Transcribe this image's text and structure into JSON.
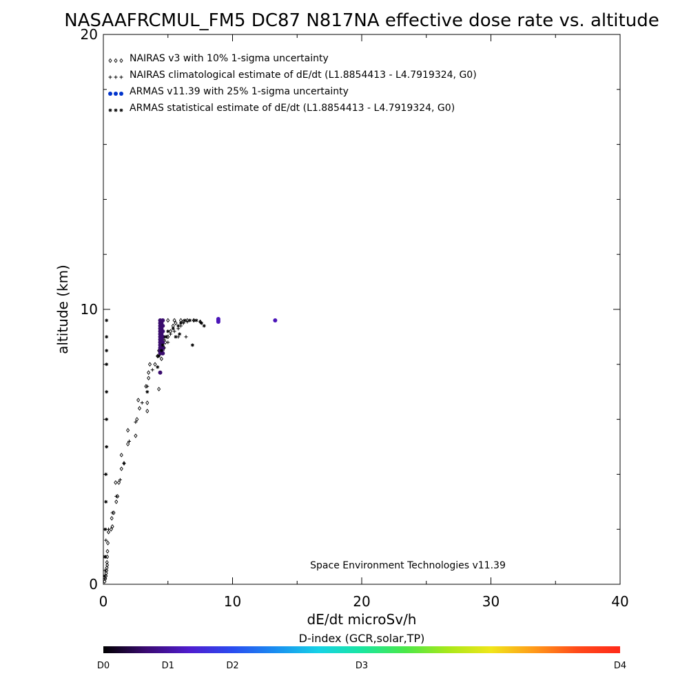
{
  "chart_data": {
    "type": "scatter",
    "title": "NASAAFRCMUL_FM5 DC87 N817NA effective dose rate vs. altitude",
    "xlabel": "dE/dt microSv/h",
    "ylabel": "altitude (km)",
    "xlim": [
      0,
      40
    ],
    "ylim": [
      0,
      20
    ],
    "x_ticks": [
      "0",
      "10",
      "20",
      "30",
      "40"
    ],
    "y_ticks": [
      "0",
      "10",
      "20"
    ],
    "grid": false,
    "legend_position": "top-left",
    "annotation": "Space Environment Technologies v11.39",
    "series": [
      {
        "name": "NAIRAS v3 with 10% 1-sigma uncertainty",
        "marker": "diamond",
        "color": "#000000",
        "points": [
          [
            0.1,
            0.1
          ],
          [
            0.15,
            0.2
          ],
          [
            0.2,
            0.3
          ],
          [
            0.22,
            0.4
          ],
          [
            0.25,
            0.5
          ],
          [
            0.27,
            0.6
          ],
          [
            0.3,
            0.7
          ],
          [
            0.28,
            0.8
          ],
          [
            0.3,
            1.0
          ],
          [
            0.32,
            1.2
          ],
          [
            0.35,
            1.5
          ],
          [
            0.4,
            1.9
          ],
          [
            0.6,
            2.0
          ],
          [
            0.7,
            2.1
          ],
          [
            0.65,
            2.4
          ],
          [
            0.8,
            2.6
          ],
          [
            1.0,
            3.0
          ],
          [
            1.1,
            3.2
          ],
          [
            0.95,
            3.7
          ],
          [
            1.2,
            3.7
          ],
          [
            1.4,
            4.2
          ],
          [
            1.6,
            4.4
          ],
          [
            1.4,
            4.7
          ],
          [
            1.9,
            5.1
          ],
          [
            1.9,
            5.6
          ],
          [
            2.5,
            5.4
          ],
          [
            2.6,
            6.0
          ],
          [
            2.8,
            6.4
          ],
          [
            3.4,
            6.3
          ],
          [
            3.4,
            6.6
          ],
          [
            2.7,
            6.7
          ],
          [
            3.5,
            7.7
          ],
          [
            3.6,
            8.0
          ],
          [
            3.5,
            7.5
          ],
          [
            3.3,
            7.2
          ],
          [
            4.2,
            8.3
          ],
          [
            4.0,
            8.0
          ],
          [
            4.5,
            8.2
          ],
          [
            4.3,
            8.5
          ],
          [
            4.7,
            8.6
          ],
          [
            4.8,
            8.8
          ],
          [
            5.0,
            9.0
          ],
          [
            5.2,
            9.2
          ],
          [
            5.4,
            9.4
          ],
          [
            5.6,
            9.5
          ],
          [
            5.0,
            9.6
          ],
          [
            5.5,
            9.6
          ],
          [
            6.0,
            9.6
          ],
          [
            6.5,
            9.6
          ],
          [
            7.0,
            9.6
          ],
          [
            7.5,
            9.55
          ],
          [
            6.2,
            9.55
          ],
          [
            4.3,
            7.1
          ]
        ]
      },
      {
        "name": "NAIRAS climatological estimate of dE/dt (L1.8854413 - L4.7919324, G0)",
        "marker": "plus",
        "color": "#000000",
        "points": [
          [
            0.1,
            0.2
          ],
          [
            0.12,
            0.5
          ],
          [
            0.15,
            1.0
          ],
          [
            0.2,
            1.6
          ],
          [
            0.4,
            2.0
          ],
          [
            0.7,
            2.6
          ],
          [
            1.0,
            3.2
          ],
          [
            1.3,
            3.8
          ],
          [
            1.6,
            4.4
          ],
          [
            2.0,
            5.2
          ],
          [
            2.5,
            5.9
          ],
          [
            3.0,
            6.6
          ],
          [
            3.4,
            7.2
          ],
          [
            3.8,
            7.8
          ],
          [
            4.2,
            8.3
          ],
          [
            4.5,
            8.6
          ],
          [
            4.7,
            8.9
          ],
          [
            4.9,
            9.0
          ],
          [
            5.2,
            9.1
          ],
          [
            5.5,
            9.2
          ],
          [
            5.8,
            9.3
          ],
          [
            6.0,
            9.4
          ],
          [
            6.2,
            9.5
          ],
          [
            6.5,
            9.55
          ],
          [
            7.0,
            9.6
          ],
          [
            7.5,
            9.55
          ],
          [
            6.4,
            9.0
          ],
          [
            5.8,
            9.0
          ],
          [
            5.0,
            8.8
          ],
          [
            4.6,
            8.5
          ]
        ]
      },
      {
        "name": "ARMAS v11.39 with 25% 1-sigma uncertainty",
        "marker": "dot",
        "color": "#0033cc",
        "points": [
          [
            4.4,
            9.6
          ],
          [
            4.4,
            9.5
          ],
          [
            4.4,
            9.4
          ],
          [
            4.4,
            9.3
          ],
          [
            4.4,
            9.2
          ],
          [
            4.4,
            9.1
          ],
          [
            4.4,
            9.0
          ],
          [
            4.4,
            8.9
          ],
          [
            4.4,
            8.8
          ],
          [
            4.4,
            8.7
          ],
          [
            4.4,
            8.6
          ],
          [
            4.4,
            8.5
          ],
          [
            4.4,
            8.4
          ],
          [
            4.4,
            7.7
          ],
          [
            4.6,
            9.6
          ],
          [
            4.6,
            9.4
          ],
          [
            4.6,
            9.2
          ],
          [
            4.6,
            9.0
          ],
          [
            4.6,
            8.8
          ],
          [
            4.6,
            8.6
          ],
          [
            4.6,
            8.4
          ],
          [
            4.5,
            9.5
          ],
          [
            4.5,
            9.3
          ],
          [
            4.5,
            9.1
          ],
          [
            4.5,
            8.9
          ],
          [
            4.5,
            8.7
          ],
          [
            4.5,
            8.5
          ],
          [
            8.9,
            9.65
          ],
          [
            8.9,
            9.55
          ],
          [
            8.9,
            9.6
          ],
          [
            13.3,
            9.6
          ]
        ]
      },
      {
        "name": "ARMAS statistical estimate of dE/dt (L1.8854413 - L4.7919324, G0)",
        "marker": "asterisk",
        "color": "#000000",
        "points": [
          [
            0.1,
            0.3
          ],
          [
            0.12,
            1.0
          ],
          [
            0.15,
            2.0
          ],
          [
            0.2,
            3.0
          ],
          [
            0.2,
            4.0
          ],
          [
            0.25,
            5.0
          ],
          [
            0.25,
            6.0
          ],
          [
            0.25,
            7.0
          ],
          [
            0.25,
            8.0
          ],
          [
            0.25,
            8.5
          ],
          [
            0.25,
            9.0
          ],
          [
            0.25,
            9.6
          ],
          [
            3.4,
            7.0
          ],
          [
            4.2,
            7.9
          ],
          [
            4.3,
            8.3
          ],
          [
            4.5,
            8.5
          ],
          [
            4.6,
            8.7
          ],
          [
            4.8,
            9.0
          ],
          [
            5.0,
            9.2
          ],
          [
            5.4,
            9.3
          ],
          [
            5.8,
            9.4
          ],
          [
            6.0,
            9.5
          ],
          [
            6.3,
            9.6
          ],
          [
            6.7,
            9.6
          ],
          [
            7.2,
            9.6
          ],
          [
            7.6,
            9.5
          ],
          [
            6.9,
            8.7
          ],
          [
            5.6,
            9.0
          ],
          [
            5.9,
            9.1
          ],
          [
            7.8,
            9.4
          ]
        ]
      }
    ]
  },
  "colorbar": {
    "title": "D-index (GCR,solar,TP)",
    "labels": [
      "D0",
      "D1",
      "D2",
      "D3",
      "D4"
    ],
    "label_positions": [
      0,
      0.125,
      0.25,
      0.5,
      1.0
    ],
    "colors": [
      "#000000",
      "#3b0a73",
      "#4f1ccf",
      "#2a4cf0",
      "#1a8ef0",
      "#16d2e6",
      "#1ae6a0",
      "#4ae84a",
      "#a8e81a",
      "#f0e61a",
      "#ff9a1a",
      "#ff4a1a",
      "#ff2a1a"
    ]
  }
}
